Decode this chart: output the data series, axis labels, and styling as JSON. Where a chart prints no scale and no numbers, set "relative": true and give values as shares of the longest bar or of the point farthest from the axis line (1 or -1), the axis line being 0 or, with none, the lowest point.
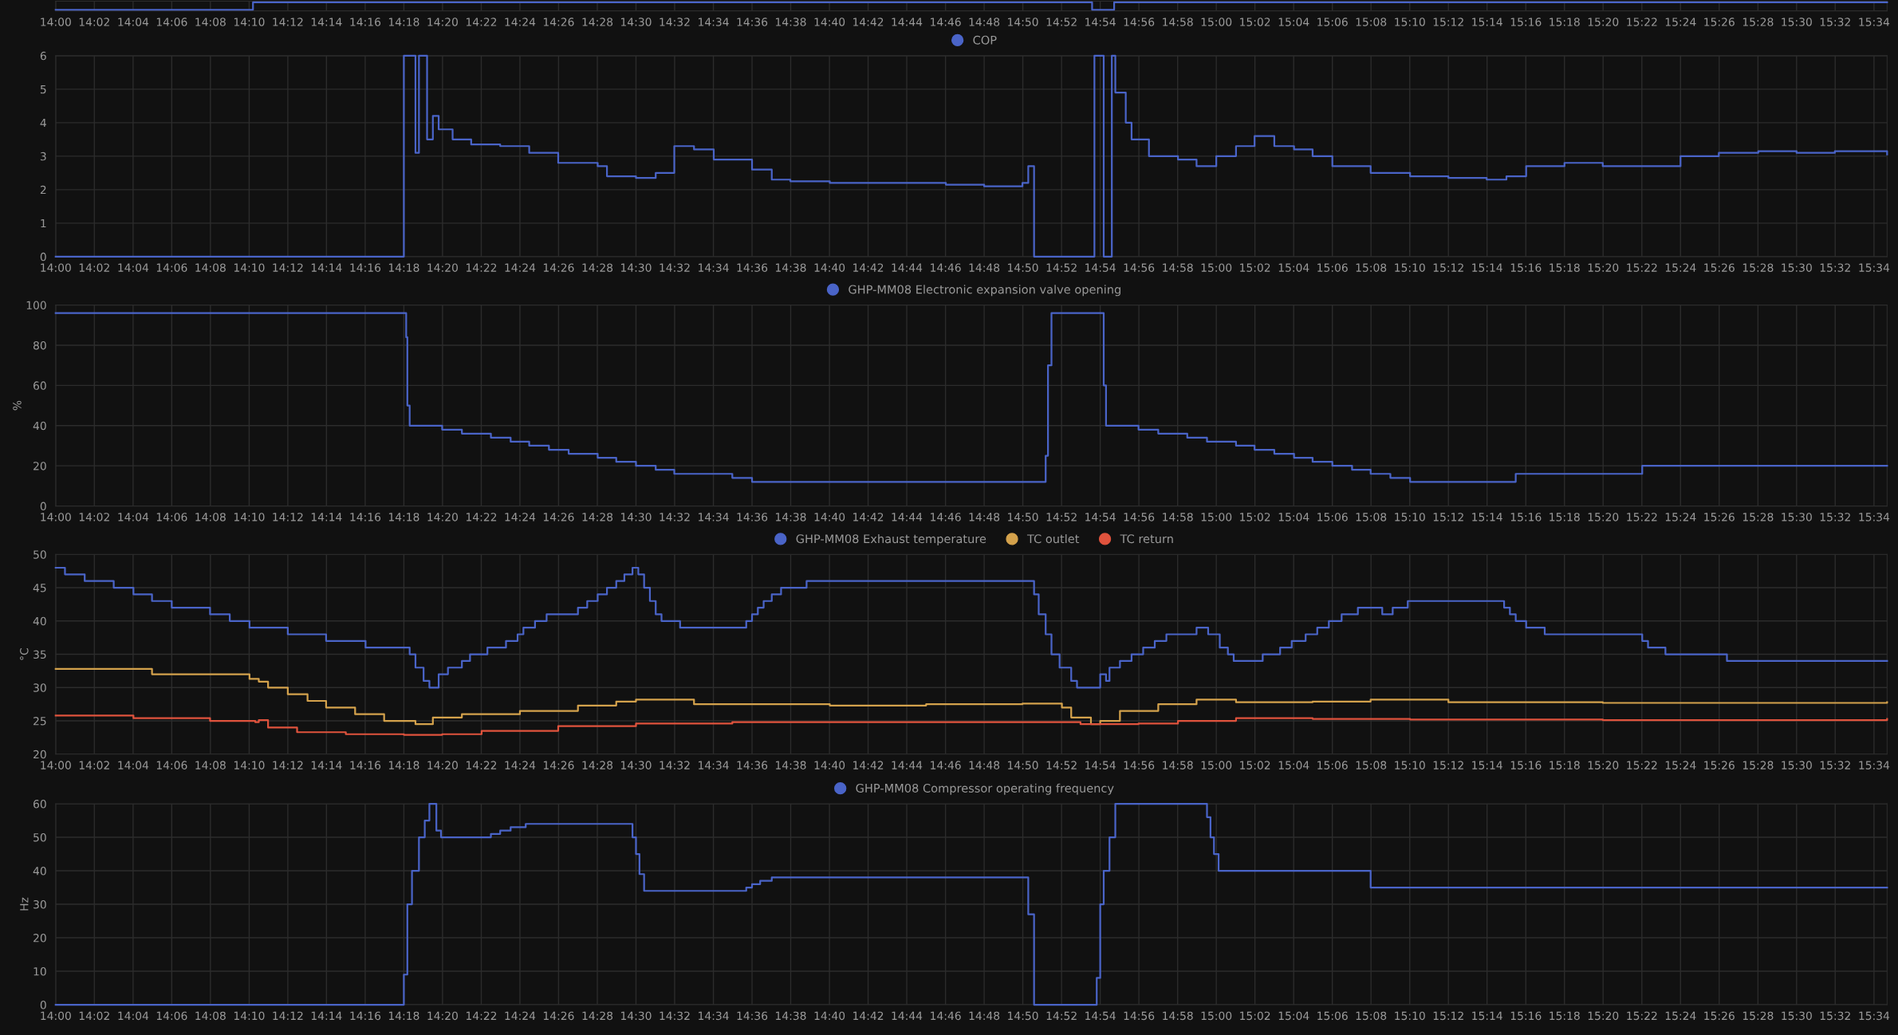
{
  "chart_data": [
    {
      "type": "step",
      "relative": true,
      "tick_labels": "x",
      "grid": "x",
      "xlim": [
        14,
        15.578
      ],
      "xticks": [
        {
          "value": 14,
          "label": "14:00"
        },
        {
          "value": 14.0333,
          "label": "14:02"
        },
        {
          "value": 14.0667,
          "label": "14:04"
        },
        {
          "value": 14.1,
          "label": "14:06"
        },
        {
          "value": 14.1333,
          "label": "14:08"
        },
        {
          "value": 14.1667,
          "label": "14:10"
        },
        {
          "value": 14.2,
          "label": "14:12"
        },
        {
          "value": 14.2333,
          "label": "14:14"
        },
        {
          "value": 14.2667,
          "label": "14:16"
        },
        {
          "value": 14.3,
          "label": "14:18"
        },
        {
          "value": 14.3333,
          "label": "14:20"
        },
        {
          "value": 14.3667,
          "label": "14:22"
        },
        {
          "value": 14.4,
          "label": "14:24"
        },
        {
          "value": 14.4333,
          "label": "14:26"
        },
        {
          "value": 14.4667,
          "label": "14:28"
        },
        {
          "value": 14.5,
          "label": "14:30"
        },
        {
          "value": 14.5333,
          "label": "14:32"
        },
        {
          "value": 14.5667,
          "label": "14:34"
        },
        {
          "value": 14.6,
          "label": "14:36"
        },
        {
          "value": 14.6333,
          "label": "14:38"
        },
        {
          "value": 14.6667,
          "label": "14:40"
        },
        {
          "value": 14.7,
          "label": "14:42"
        },
        {
          "value": 14.7333,
          "label": "14:44"
        },
        {
          "value": 14.7667,
          "label": "14:46"
        },
        {
          "value": 14.8,
          "label": "14:48"
        },
        {
          "value": 14.8333,
          "label": "14:50"
        },
        {
          "value": 14.8667,
          "label": "14:52"
        },
        {
          "value": 14.9,
          "label": "14:54"
        },
        {
          "value": 14.9333,
          "label": "14:56"
        },
        {
          "value": 14.9667,
          "label": "14:58"
        },
        {
          "value": 15,
          "label": "15:00"
        },
        {
          "value": 15.0333,
          "label": "15:02"
        },
        {
          "value": 15.0667,
          "label": "15:04"
        },
        {
          "value": 15.1,
          "label": "15:06"
        },
        {
          "value": 15.1333,
          "label": "15:08"
        },
        {
          "value": 15.1667,
          "label": "15:10"
        },
        {
          "value": 15.2,
          "label": "15:12"
        },
        {
          "value": 15.2333,
          "label": "15:14"
        },
        {
          "value": 15.2667,
          "label": "15:16"
        },
        {
          "value": 15.3,
          "label": "15:18"
        },
        {
          "value": 15.3333,
          "label": "15:20"
        },
        {
          "value": 15.3667,
          "label": "15:22"
        },
        {
          "value": 15.4,
          "label": "15:24"
        },
        {
          "value": 15.4333,
          "label": "15:26"
        },
        {
          "value": 15.4667,
          "label": "15:28"
        },
        {
          "value": 15.5,
          "label": "15:30"
        },
        {
          "value": 15.5333,
          "label": "15:32"
        },
        {
          "value": 15.5667,
          "label": "15:34"
        }
      ],
      "series": [
        {
          "color": "#4a64c8",
          "x": [
            14.0,
            14.17,
            14.893,
            14.912,
            15.578
          ],
          "values": [
            0,
            1,
            0,
            1,
            1
          ]
        }
      ]
    },
    {
      "type": "step",
      "legend": "top",
      "grid": true,
      "xlim": [
        14,
        15.578
      ],
      "ylim": [
        0,
        6
      ],
      "yticks": [
        0,
        1,
        2,
        3,
        4,
        5,
        6
      ],
      "xticks": [
        {
          "value": 14,
          "label": "14:00"
        },
        {
          "value": 14.0333,
          "label": "14:02"
        },
        {
          "value": 14.0667,
          "label": "14:04"
        },
        {
          "value": 14.1,
          "label": "14:06"
        },
        {
          "value": 14.1333,
          "label": "14:08"
        },
        {
          "value": 14.1667,
          "label": "14:10"
        },
        {
          "value": 14.2,
          "label": "14:12"
        },
        {
          "value": 14.2333,
          "label": "14:14"
        },
        {
          "value": 14.2667,
          "label": "14:16"
        },
        {
          "value": 14.3,
          "label": "14:18"
        },
        {
          "value": 14.3333,
          "label": "14:20"
        },
        {
          "value": 14.3667,
          "label": "14:22"
        },
        {
          "value": 14.4,
          "label": "14:24"
        },
        {
          "value": 14.4333,
          "label": "14:26"
        },
        {
          "value": 14.4667,
          "label": "14:28"
        },
        {
          "value": 14.5,
          "label": "14:30"
        },
        {
          "value": 14.5333,
          "label": "14:32"
        },
        {
          "value": 14.5667,
          "label": "14:34"
        },
        {
          "value": 14.6,
          "label": "14:36"
        },
        {
          "value": 14.6333,
          "label": "14:38"
        },
        {
          "value": 14.6667,
          "label": "14:40"
        },
        {
          "value": 14.7,
          "label": "14:42"
        },
        {
          "value": 14.7333,
          "label": "14:44"
        },
        {
          "value": 14.7667,
          "label": "14:46"
        },
        {
          "value": 14.8,
          "label": "14:48"
        },
        {
          "value": 14.8333,
          "label": "14:50"
        },
        {
          "value": 14.8667,
          "label": "14:52"
        },
        {
          "value": 14.9,
          "label": "14:54"
        },
        {
          "value": 14.9333,
          "label": "14:56"
        },
        {
          "value": 14.9667,
          "label": "14:58"
        },
        {
          "value": 15,
          "label": "15:00"
        },
        {
          "value": 15.0333,
          "label": "15:02"
        },
        {
          "value": 15.0667,
          "label": "15:04"
        },
        {
          "value": 15.1,
          "label": "15:06"
        },
        {
          "value": 15.1333,
          "label": "15:08"
        },
        {
          "value": 15.1667,
          "label": "15:10"
        },
        {
          "value": 15.2,
          "label": "15:12"
        },
        {
          "value": 15.2333,
          "label": "15:14"
        },
        {
          "value": 15.2667,
          "label": "15:16"
        },
        {
          "value": 15.3,
          "label": "15:18"
        },
        {
          "value": 15.3333,
          "label": "15:20"
        },
        {
          "value": 15.3667,
          "label": "15:22"
        },
        {
          "value": 15.4,
          "label": "15:24"
        },
        {
          "value": 15.4333,
          "label": "15:26"
        },
        {
          "value": 15.4667,
          "label": "15:28"
        },
        {
          "value": 15.5,
          "label": "15:30"
        },
        {
          "value": 15.5333,
          "label": "15:32"
        },
        {
          "value": 15.5667,
          "label": "15:34"
        }
      ],
      "series": [
        {
          "name": "COP",
          "color": "#4a64c8",
          "x": [
            14.0,
            14.3,
            14.31,
            14.313,
            14.32,
            14.325,
            14.33,
            14.342,
            14.358,
            14.383,
            14.408,
            14.433,
            14.467,
            14.475,
            14.5,
            14.517,
            14.533,
            14.55,
            14.567,
            14.583,
            14.6,
            14.617,
            14.633,
            14.667,
            14.733,
            14.767,
            14.8,
            14.833,
            14.838,
            14.843,
            14.895,
            14.903,
            14.91,
            14.913,
            14.922,
            14.927,
            14.942,
            14.967,
            14.983,
            15.0,
            15.017,
            15.033,
            15.05,
            15.067,
            15.083,
            15.1,
            15.133,
            15.167,
            15.2,
            15.233,
            15.25,
            15.267,
            15.3,
            15.333,
            15.367,
            15.4,
            15.433,
            15.467,
            15.5,
            15.533,
            15.578
          ],
          "values": [
            0,
            6,
            3.1,
            6,
            3.5,
            4.2,
            3.8,
            3.5,
            3.35,
            3.3,
            3.1,
            2.8,
            2.7,
            2.4,
            2.35,
            2.5,
            3.3,
            3.2,
            2.9,
            2.9,
            2.6,
            2.3,
            2.25,
            2.2,
            2.2,
            2.15,
            2.1,
            2.2,
            2.7,
            0,
            6,
            0,
            6,
            4.9,
            4,
            3.5,
            3.0,
            2.9,
            2.7,
            3.0,
            3.3,
            3.6,
            3.3,
            3.2,
            3.0,
            2.7,
            2.5,
            2.4,
            2.35,
            2.3,
            2.4,
            2.7,
            2.8,
            2.7,
            2.7,
            3.0,
            3.1,
            3.15,
            3.1,
            3.15,
            3.05
          ]
        }
      ]
    },
    {
      "type": "step",
      "legend": "top",
      "grid": true,
      "ylabel": "%",
      "xlim": [
        14,
        15.578
      ],
      "ylim": [
        0,
        100
      ],
      "yticks": [
        0,
        20,
        40,
        60,
        80,
        100
      ],
      "xticks": [
        {
          "value": 14,
          "label": "14:00"
        },
        {
          "value": 14.0333,
          "label": "14:02"
        },
        {
          "value": 14.0667,
          "label": "14:04"
        },
        {
          "value": 14.1,
          "label": "14:06"
        },
        {
          "value": 14.1333,
          "label": "14:08"
        },
        {
          "value": 14.1667,
          "label": "14:10"
        },
        {
          "value": 14.2,
          "label": "14:12"
        },
        {
          "value": 14.2333,
          "label": "14:14"
        },
        {
          "value": 14.2667,
          "label": "14:16"
        },
        {
          "value": 14.3,
          "label": "14:18"
        },
        {
          "value": 14.3333,
          "label": "14:20"
        },
        {
          "value": 14.3667,
          "label": "14:22"
        },
        {
          "value": 14.4,
          "label": "14:24"
        },
        {
          "value": 14.4333,
          "label": "14:26"
        },
        {
          "value": 14.4667,
          "label": "14:28"
        },
        {
          "value": 14.5,
          "label": "14:30"
        },
        {
          "value": 14.5333,
          "label": "14:32"
        },
        {
          "value": 14.5667,
          "label": "14:34"
        },
        {
          "value": 14.6,
          "label": "14:36"
        },
        {
          "value": 14.6333,
          "label": "14:38"
        },
        {
          "value": 14.6667,
          "label": "14:40"
        },
        {
          "value": 14.7,
          "label": "14:42"
        },
        {
          "value": 14.7333,
          "label": "14:44"
        },
        {
          "value": 14.7667,
          "label": "14:46"
        },
        {
          "value": 14.8,
          "label": "14:48"
        },
        {
          "value": 14.8333,
          "label": "14:50"
        },
        {
          "value": 14.8667,
          "label": "14:52"
        },
        {
          "value": 14.9,
          "label": "14:54"
        },
        {
          "value": 14.9333,
          "label": "14:56"
        },
        {
          "value": 14.9667,
          "label": "14:58"
        },
        {
          "value": 15,
          "label": "15:00"
        },
        {
          "value": 15.0333,
          "label": "15:02"
        },
        {
          "value": 15.0667,
          "label": "15:04"
        },
        {
          "value": 15.1,
          "label": "15:06"
        },
        {
          "value": 15.1333,
          "label": "15:08"
        },
        {
          "value": 15.1667,
          "label": "15:10"
        },
        {
          "value": 15.2,
          "label": "15:12"
        },
        {
          "value": 15.2333,
          "label": "15:14"
        },
        {
          "value": 15.2667,
          "label": "15:16"
        },
        {
          "value": 15.3,
          "label": "15:18"
        },
        {
          "value": 15.3333,
          "label": "15:20"
        },
        {
          "value": 15.3667,
          "label": "15:22"
        },
        {
          "value": 15.4,
          "label": "15:24"
        },
        {
          "value": 15.4333,
          "label": "15:26"
        },
        {
          "value": 15.4667,
          "label": "15:28"
        },
        {
          "value": 15.5,
          "label": "15:30"
        },
        {
          "value": 15.5333,
          "label": "15:32"
        },
        {
          "value": 15.5667,
          "label": "15:34"
        }
      ],
      "series": [
        {
          "name": "GHP-MM08 Electronic expansion valve opening",
          "color": "#4a64c8",
          "x": [
            14.0,
            14.302,
            14.303,
            14.305,
            14.333,
            14.35,
            14.375,
            14.392,
            14.408,
            14.425,
            14.442,
            14.467,
            14.483,
            14.5,
            14.517,
            14.533,
            14.583,
            14.6,
            14.853,
            14.855,
            14.858,
            14.903,
            14.905,
            14.933,
            14.95,
            14.975,
            14.992,
            15.017,
            15.033,
            15.05,
            15.067,
            15.083,
            15.1,
            15.117,
            15.133,
            15.15,
            15.167,
            15.258,
            15.367,
            15.578
          ],
          "values": [
            96,
            84,
            50,
            40,
            38,
            36,
            34,
            32,
            30,
            28,
            26,
            24,
            22,
            20,
            18,
            16,
            14,
            12,
            25,
            70,
            96,
            60,
            40,
            38,
            36,
            34,
            32,
            30,
            28,
            26,
            24,
            22,
            20,
            18,
            16,
            14,
            12,
            16,
            20,
            20
          ]
        }
      ]
    },
    {
      "type": "step",
      "legend": "top",
      "grid": true,
      "ylabel": "°C",
      "xlim": [
        14,
        15.578
      ],
      "ylim": [
        20,
        50
      ],
      "yticks": [
        20,
        25,
        30,
        35,
        40,
        45,
        50
      ],
      "xticks": [
        {
          "value": 14,
          "label": "14:00"
        },
        {
          "value": 14.0333,
          "label": "14:02"
        },
        {
          "value": 14.0667,
          "label": "14:04"
        },
        {
          "value": 14.1,
          "label": "14:06"
        },
        {
          "value": 14.1333,
          "label": "14:08"
        },
        {
          "value": 14.1667,
          "label": "14:10"
        },
        {
          "value": 14.2,
          "label": "14:12"
        },
        {
          "value": 14.2333,
          "label": "14:14"
        },
        {
          "value": 14.2667,
          "label": "14:16"
        },
        {
          "value": 14.3,
          "label": "14:18"
        },
        {
          "value": 14.3333,
          "label": "14:20"
        },
        {
          "value": 14.3667,
          "label": "14:22"
        },
        {
          "value": 14.4,
          "label": "14:24"
        },
        {
          "value": 14.4333,
          "label": "14:26"
        },
        {
          "value": 14.4667,
          "label": "14:28"
        },
        {
          "value": 14.5,
          "label": "14:30"
        },
        {
          "value": 14.5333,
          "label": "14:32"
        },
        {
          "value": 14.5667,
          "label": "14:34"
        },
        {
          "value": 14.6,
          "label": "14:36"
        },
        {
          "value": 14.6333,
          "label": "14:38"
        },
        {
          "value": 14.6667,
          "label": "14:40"
        },
        {
          "value": 14.7,
          "label": "14:42"
        },
        {
          "value": 14.7333,
          "label": "14:44"
        },
        {
          "value": 14.7667,
          "label": "14:46"
        },
        {
          "value": 14.8,
          "label": "14:48"
        },
        {
          "value": 14.8333,
          "label": "14:50"
        },
        {
          "value": 14.8667,
          "label": "14:52"
        },
        {
          "value": 14.9,
          "label": "14:54"
        },
        {
          "value": 14.9333,
          "label": "14:56"
        },
        {
          "value": 14.9667,
          "label": "14:58"
        },
        {
          "value": 15,
          "label": "15:00"
        },
        {
          "value": 15.0333,
          "label": "15:02"
        },
        {
          "value": 15.0667,
          "label": "15:04"
        },
        {
          "value": 15.1,
          "label": "15:06"
        },
        {
          "value": 15.1333,
          "label": "15:08"
        },
        {
          "value": 15.1667,
          "label": "15:10"
        },
        {
          "value": 15.2,
          "label": "15:12"
        },
        {
          "value": 15.2333,
          "label": "15:14"
        },
        {
          "value": 15.2667,
          "label": "15:16"
        },
        {
          "value": 15.3,
          "label": "15:18"
        },
        {
          "value": 15.3333,
          "label": "15:20"
        },
        {
          "value": 15.3667,
          "label": "15:22"
        },
        {
          "value": 15.4,
          "label": "15:24"
        },
        {
          "value": 15.4333,
          "label": "15:26"
        },
        {
          "value": 15.4667,
          "label": "15:28"
        },
        {
          "value": 15.5,
          "label": "15:30"
        },
        {
          "value": 15.5333,
          "label": "15:32"
        },
        {
          "value": 15.5667,
          "label": "15:34"
        }
      ],
      "series": [
        {
          "name": "GHP-MM08 Exhaust temperature",
          "color": "#4a64c8",
          "x": [
            14.0,
            14.008,
            14.025,
            14.05,
            14.067,
            14.083,
            14.1,
            14.133,
            14.15,
            14.167,
            14.2,
            14.233,
            14.267,
            14.305,
            14.31,
            14.317,
            14.322,
            14.33,
            14.338,
            14.35,
            14.357,
            14.372,
            14.388,
            14.398,
            14.403,
            14.413,
            14.423,
            14.45,
            14.458,
            14.467,
            14.475,
            14.483,
            14.49,
            14.497,
            14.502,
            14.507,
            14.512,
            14.517,
            14.522,
            14.538,
            14.595,
            14.6,
            14.605,
            14.61,
            14.617,
            14.625,
            14.647,
            14.843,
            14.847,
            14.853,
            14.858,
            14.865,
            14.875,
            14.88,
            14.9,
            14.905,
            14.908,
            14.917,
            14.927,
            14.937,
            14.947,
            14.957,
            14.983,
            14.993,
            15.003,
            15.01,
            15.015,
            15.04,
            15.055,
            15.065,
            15.077,
            15.087,
            15.097,
            15.108,
            15.122,
            15.143,
            15.152,
            15.165,
            15.248,
            15.253,
            15.258,
            15.267,
            15.283,
            15.367,
            15.372,
            15.387,
            15.44,
            15.578
          ],
          "values": [
            48,
            47,
            46,
            45,
            44,
            43,
            42,
            41,
            40,
            39,
            38,
            37,
            36,
            35,
            33,
            31,
            30,
            32,
            33,
            34,
            35,
            36,
            37,
            38,
            39,
            40,
            41,
            42,
            43,
            44,
            45,
            46,
            47,
            48,
            47,
            45,
            43,
            41,
            40,
            39,
            40,
            41,
            42,
            43,
            44,
            45,
            46,
            44,
            41,
            38,
            35,
            33,
            31,
            30,
            32,
            31,
            33,
            34,
            35,
            36,
            37,
            38,
            39,
            38,
            36,
            35,
            34,
            35,
            36,
            37,
            38,
            39,
            40,
            41,
            42,
            41,
            42,
            43,
            42,
            41,
            40,
            39,
            38,
            37,
            36,
            35,
            34,
            34
          ]
        },
        {
          "name": "TC outlet",
          "color": "#d4a24c",
          "x": [
            14.0,
            14.083,
            14.167,
            14.175,
            14.183,
            14.2,
            14.217,
            14.233,
            14.258,
            14.283,
            14.31,
            14.325,
            14.35,
            14.4,
            14.45,
            14.483,
            14.5,
            14.55,
            14.667,
            14.75,
            14.833,
            14.867,
            14.875,
            14.892,
            14.9,
            14.917,
            14.95,
            14.983,
            15.017,
            15.083,
            15.133,
            15.2,
            15.333,
            15.578
          ],
          "values": [
            32.8,
            32,
            31.3,
            30.9,
            30,
            29,
            28,
            27,
            26,
            25,
            24.5,
            25.5,
            26,
            26.5,
            27.3,
            27.9,
            28.2,
            27.5,
            27.3,
            27.5,
            27.6,
            27,
            25.5,
            24.5,
            25,
            26.5,
            27.5,
            28.2,
            27.8,
            27.9,
            28.2,
            27.8,
            27.7,
            27.8
          ]
        },
        {
          "name": "TC return",
          "color": "#e0533d",
          "x": [
            14.0,
            14.067,
            14.133,
            14.172,
            14.175,
            14.183,
            14.208,
            14.25,
            14.3,
            14.333,
            14.367,
            14.433,
            14.5,
            14.583,
            14.833,
            14.883,
            14.933,
            14.967,
            15.017,
            15.083,
            15.167,
            15.333,
            15.578
          ],
          "values": [
            25.8,
            25.4,
            25,
            24.8,
            25.1,
            24,
            23.3,
            23,
            22.9,
            23,
            23.5,
            24.2,
            24.6,
            24.8,
            24.8,
            24.5,
            24.6,
            25,
            25.4,
            25.3,
            25.2,
            25.1,
            25.3
          ]
        }
      ]
    },
    {
      "type": "step",
      "legend": "top",
      "grid": true,
      "ylabel": "Hz",
      "xlim": [
        14,
        15.578
      ],
      "ylim": [
        0,
        60
      ],
      "yticks": [
        0,
        10,
        20,
        30,
        40,
        50,
        60
      ],
      "xticks": [
        {
          "value": 14,
          "label": "14:00"
        },
        {
          "value": 14.0333,
          "label": "14:02"
        },
        {
          "value": 14.0667,
          "label": "14:04"
        },
        {
          "value": 14.1,
          "label": "14:06"
        },
        {
          "value": 14.1333,
          "label": "14:08"
        },
        {
          "value": 14.1667,
          "label": "14:10"
        },
        {
          "value": 14.2,
          "label": "14:12"
        },
        {
          "value": 14.2333,
          "label": "14:14"
        },
        {
          "value": 14.2667,
          "label": "14:16"
        },
        {
          "value": 14.3,
          "label": "14:18"
        },
        {
          "value": 14.3333,
          "label": "14:20"
        },
        {
          "value": 14.3667,
          "label": "14:22"
        },
        {
          "value": 14.4,
          "label": "14:24"
        },
        {
          "value": 14.4333,
          "label": "14:26"
        },
        {
          "value": 14.4667,
          "label": "14:28"
        },
        {
          "value": 14.5,
          "label": "14:30"
        },
        {
          "value": 14.5333,
          "label": "14:32"
        },
        {
          "value": 14.5667,
          "label": "14:34"
        },
        {
          "value": 14.6,
          "label": "14:36"
        },
        {
          "value": 14.6333,
          "label": "14:38"
        },
        {
          "value": 14.6667,
          "label": "14:40"
        },
        {
          "value": 14.7,
          "label": "14:42"
        },
        {
          "value": 14.7333,
          "label": "14:44"
        },
        {
          "value": 14.7667,
          "label": "14:46"
        },
        {
          "value": 14.8,
          "label": "14:48"
        },
        {
          "value": 14.8333,
          "label": "14:50"
        },
        {
          "value": 14.8667,
          "label": "14:52"
        },
        {
          "value": 14.9,
          "label": "14:54"
        },
        {
          "value": 14.9333,
          "label": "14:56"
        },
        {
          "value": 14.9667,
          "label": "14:58"
        },
        {
          "value": 15,
          "label": "15:00"
        },
        {
          "value": 15.0333,
          "label": "15:02"
        },
        {
          "value": 15.0667,
          "label": "15:04"
        },
        {
          "value": 15.1,
          "label": "15:06"
        },
        {
          "value": 15.1333,
          "label": "15:08"
        },
        {
          "value": 15.1667,
          "label": "15:10"
        },
        {
          "value": 15.2,
          "label": "15:12"
        },
        {
          "value": 15.2333,
          "label": "15:14"
        },
        {
          "value": 15.2667,
          "label": "15:16"
        },
        {
          "value": 15.3,
          "label": "15:18"
        },
        {
          "value": 15.3333,
          "label": "15:20"
        },
        {
          "value": 15.3667,
          "label": "15:22"
        },
        {
          "value": 15.4,
          "label": "15:24"
        },
        {
          "value": 15.4333,
          "label": "15:26"
        },
        {
          "value": 15.4667,
          "label": "15:28"
        },
        {
          "value": 15.5,
          "label": "15:30"
        },
        {
          "value": 15.5333,
          "label": "15:32"
        },
        {
          "value": 15.5667,
          "label": "15:34"
        }
      ],
      "series": [
        {
          "name": "GHP-MM08 Compressor operating frequency",
          "color": "#4a64c8",
          "x": [
            14.0,
            14.3,
            14.303,
            14.307,
            14.313,
            14.318,
            14.322,
            14.328,
            14.332,
            14.375,
            14.383,
            14.392,
            14.405,
            14.497,
            14.5,
            14.503,
            14.507,
            14.595,
            14.6,
            14.607,
            14.617,
            14.838,
            14.843,
            14.897,
            14.9,
            14.903,
            14.908,
            14.913,
            14.992,
            14.995,
            14.998,
            15.002,
            15.133,
            15.578
          ],
          "values": [
            0,
            9,
            30,
            40,
            50,
            55,
            60,
            52,
            50,
            51,
            52,
            53,
            54,
            50,
            45,
            39,
            34,
            35,
            36,
            37,
            38,
            27,
            0,
            8,
            30,
            40,
            50,
            60,
            56,
            50,
            45,
            40,
            35,
            35
          ]
        }
      ]
    }
  ]
}
